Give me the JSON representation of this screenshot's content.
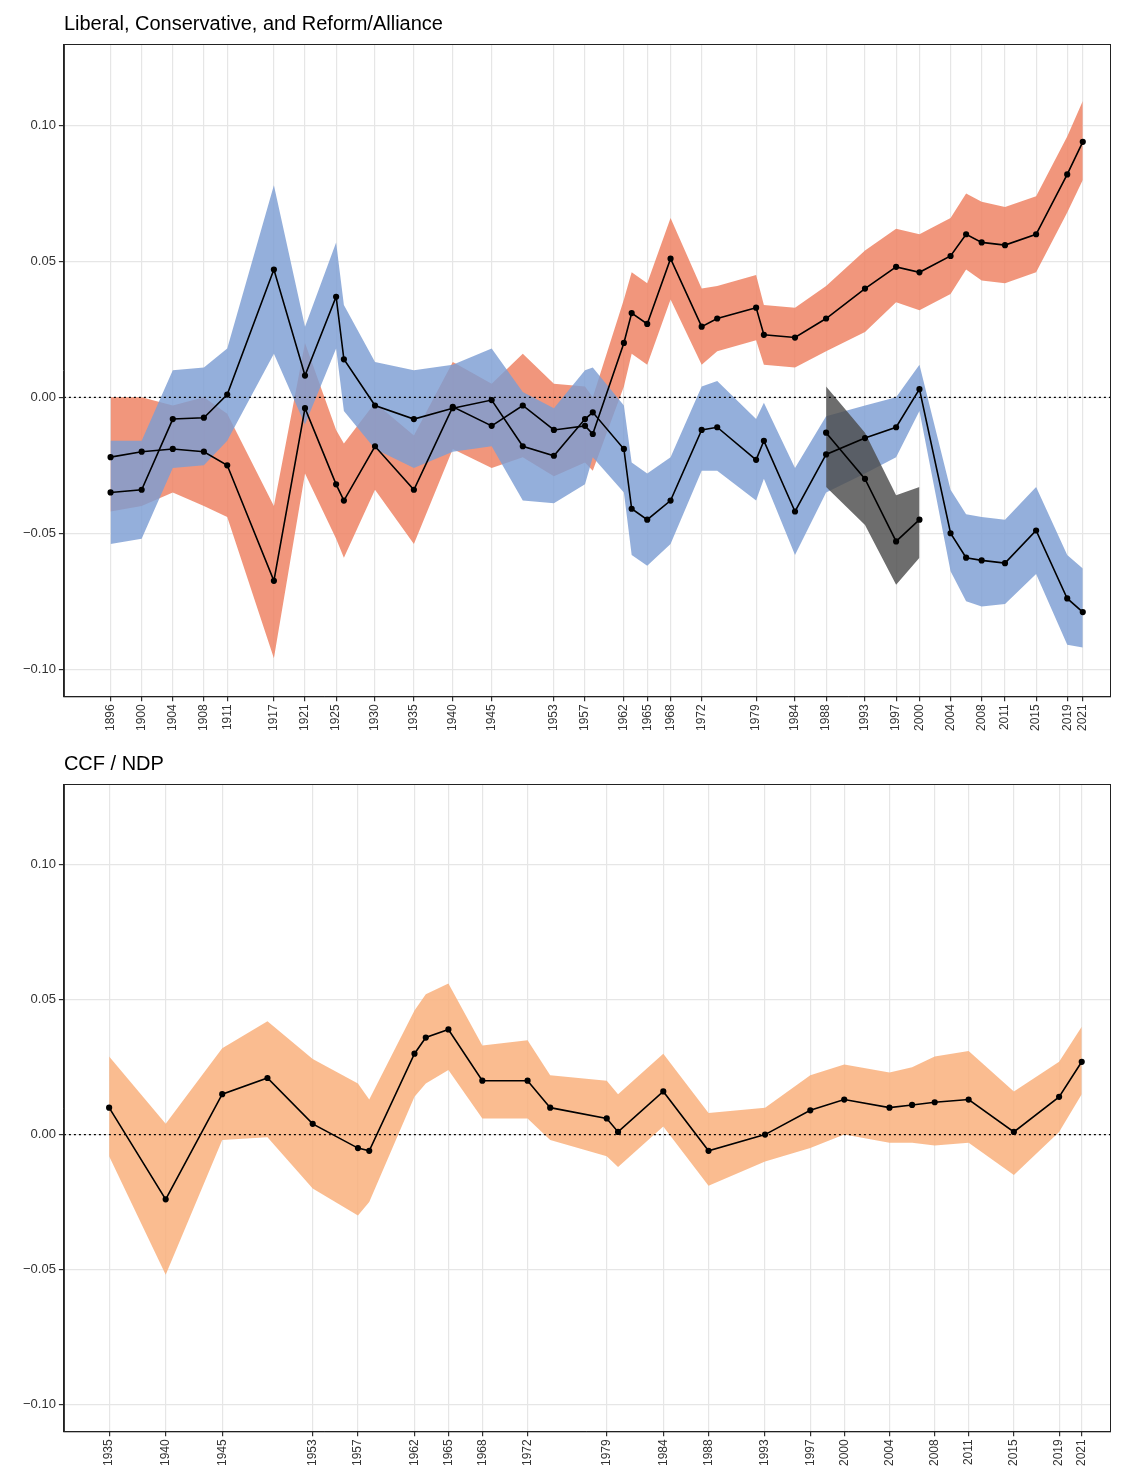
{
  "chart_data": [
    {
      "type": "line",
      "title": "Liberal, Conservative, and Reform/Alliance",
      "grid": true,
      "xlim": [
        1890,
        2024.5
      ],
      "xticks": [
        1896,
        1900,
        1904,
        1908,
        1911,
        1917,
        1921,
        1925,
        1930,
        1935,
        1940,
        1945,
        1953,
        1957,
        1962,
        1965,
        1968,
        1972,
        1979,
        1984,
        1988,
        1993,
        1997,
        2000,
        2004,
        2008,
        2011,
        2015,
        2019,
        2021
      ],
      "ylim": [
        -0.11,
        0.13
      ],
      "yticks": [
        {
          "value": 0.1,
          "label": "0.10"
        },
        {
          "value": 0.05,
          "label": "0.05"
        },
        {
          "value": 0,
          "label": "0.00"
        },
        {
          "value": -0.05,
          "label": "−0.05"
        },
        {
          "value": -0.1,
          "label": "−0.10"
        }
      ],
      "series": [
        {
          "color": "#ee7f5f",
          "marker": "circle",
          "x": [
            1896,
            1900,
            1904,
            1908,
            1911,
            1917,
            1921,
            1925,
            1926,
            1930,
            1935,
            1940,
            1945,
            1949,
            1953,
            1957,
            1958,
            1962,
            1963,
            1965,
            1968,
            1972,
            1974,
            1979,
            1980,
            1984,
            1988,
            1993,
            1997,
            2000,
            2004,
            2006,
            2008,
            2011,
            2015,
            2019,
            2021
          ],
          "values": [
            -0.022,
            -0.02,
            -0.019,
            -0.02,
            -0.025,
            -0.0675,
            -0.004,
            -0.032,
            -0.038,
            -0.018,
            -0.034,
            -0.0035,
            -0.0105,
            -0.003,
            -0.012,
            -0.0105,
            -0.0135,
            0.02,
            0.031,
            0.027,
            0.051,
            0.026,
            0.029,
            0.033,
            0.023,
            0.022,
            0.029,
            0.04,
            0.048,
            0.046,
            0.052,
            0.06,
            0.057,
            0.056,
            0.06,
            0.082,
            0.094
          ],
          "lower": [
            -0.042,
            -0.04,
            -0.035,
            -0.04,
            -0.044,
            -0.096,
            -0.028,
            -0.052,
            -0.059,
            -0.034,
            -0.054,
            -0.019,
            -0.026,
            -0.022,
            -0.029,
            -0.024,
            -0.027,
            0.004,
            0.016,
            0.012,
            0.036,
            0.012,
            0.017,
            0.021,
            0.012,
            0.011,
            0.017,
            0.024,
            0.035,
            0.032,
            0.038,
            0.047,
            0.043,
            0.042,
            0.046,
            0.068,
            0.08
          ],
          "upper": [
            0,
            0,
            -0.003,
            0,
            -0.006,
            -0.04,
            0.02,
            -0.012,
            -0.017,
            -0.002,
            -0.014,
            0.013,
            0.005,
            0.016,
            0.005,
            0.004,
            0,
            0.036,
            0.046,
            0.042,
            0.066,
            0.04,
            0.041,
            0.045,
            0.034,
            0.033,
            0.041,
            0.054,
            0.062,
            0.06,
            0.066,
            0.075,
            0.072,
            0.07,
            0.074,
            0.096,
            0.109
          ]
        },
        {
          "color": "#7d9ed3",
          "marker": "circle",
          "x": [
            1896,
            1900,
            1904,
            1908,
            1911,
            1917,
            1921,
            1925,
            1926,
            1930,
            1935,
            1940,
            1945,
            1949,
            1953,
            1957,
            1958,
            1962,
            1963,
            1965,
            1968,
            1972,
            1974,
            1979,
            1980,
            1984,
            1988,
            1993,
            1997,
            2000,
            2004,
            2006,
            2008,
            2011,
            2015,
            2019,
            2021
          ],
          "values": [
            -0.035,
            -0.034,
            -0.008,
            -0.0075,
            0.001,
            0.047,
            0.008,
            0.037,
            0.014,
            -0.003,
            -0.008,
            -0.004,
            -0.001,
            -0.018,
            -0.0215,
            -0.008,
            -0.0055,
            -0.019,
            -0.041,
            -0.045,
            -0.038,
            -0.012,
            -0.011,
            -0.023,
            -0.016,
            -0.042,
            -0.021,
            -0.015,
            -0.011,
            0.003,
            -0.05,
            -0.059,
            -0.06,
            -0.061,
            -0.049,
            -0.074,
            -0.079
          ],
          "lower": [
            -0.054,
            -0.052,
            -0.026,
            -0.025,
            -0.016,
            0.016,
            -0.01,
            0.018,
            -0.005,
            -0.019,
            -0.026,
            -0.02,
            -0.018,
            -0.038,
            -0.039,
            -0.032,
            -0.022,
            -0.035,
            -0.058,
            -0.062,
            -0.054,
            -0.027,
            -0.027,
            -0.038,
            -0.03,
            -0.058,
            -0.035,
            -0.028,
            -0.022,
            -0.005,
            -0.064,
            -0.075,
            -0.077,
            -0.076,
            -0.065,
            -0.091,
            -0.092
          ],
          "upper": [
            -0.016,
            -0.016,
            0.01,
            0.011,
            0.018,
            0.078,
            0.026,
            0.057,
            0.034,
            0.013,
            0.01,
            0.012,
            0.018,
            0.002,
            -0.004,
            0.01,
            0.011,
            -0.003,
            -0.024,
            -0.028,
            -0.022,
            0.004,
            0.006,
            -0.008,
            -0.002,
            -0.026,
            -0.007,
            -0.003,
            0,
            0.012,
            -0.034,
            -0.043,
            -0.044,
            -0.045,
            -0.033,
            -0.058,
            -0.063
          ]
        },
        {
          "color": "#4d4d4d",
          "marker": "circle",
          "x": [
            1988,
            1993,
            1997,
            2000
          ],
          "values": [
            -0.013,
            -0.03,
            -0.053,
            -0.045
          ],
          "lower": [
            -0.033,
            -0.047,
            -0.069,
            -0.059
          ],
          "upper": [
            0.004,
            -0.013,
            -0.036,
            -0.033
          ]
        }
      ]
    },
    {
      "type": "line",
      "title": "CCF / NDP",
      "grid": true,
      "xlim": [
        1931,
        2023.5
      ],
      "xticks": [
        1935,
        1940,
        1945,
        1953,
        1957,
        1962,
        1965,
        1968,
        1972,
        1979,
        1984,
        1988,
        1993,
        1997,
        2000,
        2004,
        2008,
        2011,
        2015,
        2019,
        2021
      ],
      "ylim": [
        -0.11,
        0.13
      ],
      "yticks": [
        {
          "value": 0.1,
          "label": "0.10"
        },
        {
          "value": 0.05,
          "label": "0.05"
        },
        {
          "value": 0,
          "label": "0.00"
        },
        {
          "value": -0.05,
          "label": "−0.05"
        },
        {
          "value": -0.1,
          "label": "−0.10"
        }
      ],
      "series": [
        {
          "color": "#f9ad78",
          "marker": "circle",
          "x": [
            1935,
            1940,
            1945,
            1949,
            1953,
            1957,
            1958,
            1962,
            1963,
            1965,
            1968,
            1972,
            1974,
            1979,
            1980,
            1984,
            1988,
            1993,
            1997,
            2000,
            2004,
            2006,
            2008,
            2011,
            2015,
            2019,
            2021
          ],
          "values": [
            0.01,
            -0.024,
            0.015,
            0.021,
            0.004,
            -0.005,
            -0.006,
            0.03,
            0.036,
            0.039,
            0.02,
            0.02,
            0.01,
            0.006,
            0.001,
            0.016,
            -0.006,
            0,
            0.009,
            0.013,
            0.01,
            0.011,
            0.012,
            0.013,
            0.001,
            0.014,
            0.027
          ],
          "lower": [
            -0.008,
            -0.052,
            -0.002,
            -0.001,
            -0.02,
            -0.03,
            -0.025,
            0.014,
            0.019,
            0.024,
            0.006,
            0.006,
            -0.002,
            -0.008,
            -0.012,
            0.003,
            -0.019,
            -0.01,
            -0.005,
            0,
            -0.003,
            -0.003,
            -0.004,
            -0.003,
            -0.015,
            0.001,
            0.015
          ],
          "upper": [
            0.029,
            0.004,
            0.032,
            0.042,
            0.028,
            0.019,
            0.013,
            0.046,
            0.052,
            0.056,
            0.033,
            0.035,
            0.022,
            0.02,
            0.015,
            0.03,
            0.008,
            0.01,
            0.022,
            0.026,
            0.023,
            0.025,
            0.029,
            0.031,
            0.016,
            0.027,
            0.04
          ]
        }
      ]
    }
  ]
}
